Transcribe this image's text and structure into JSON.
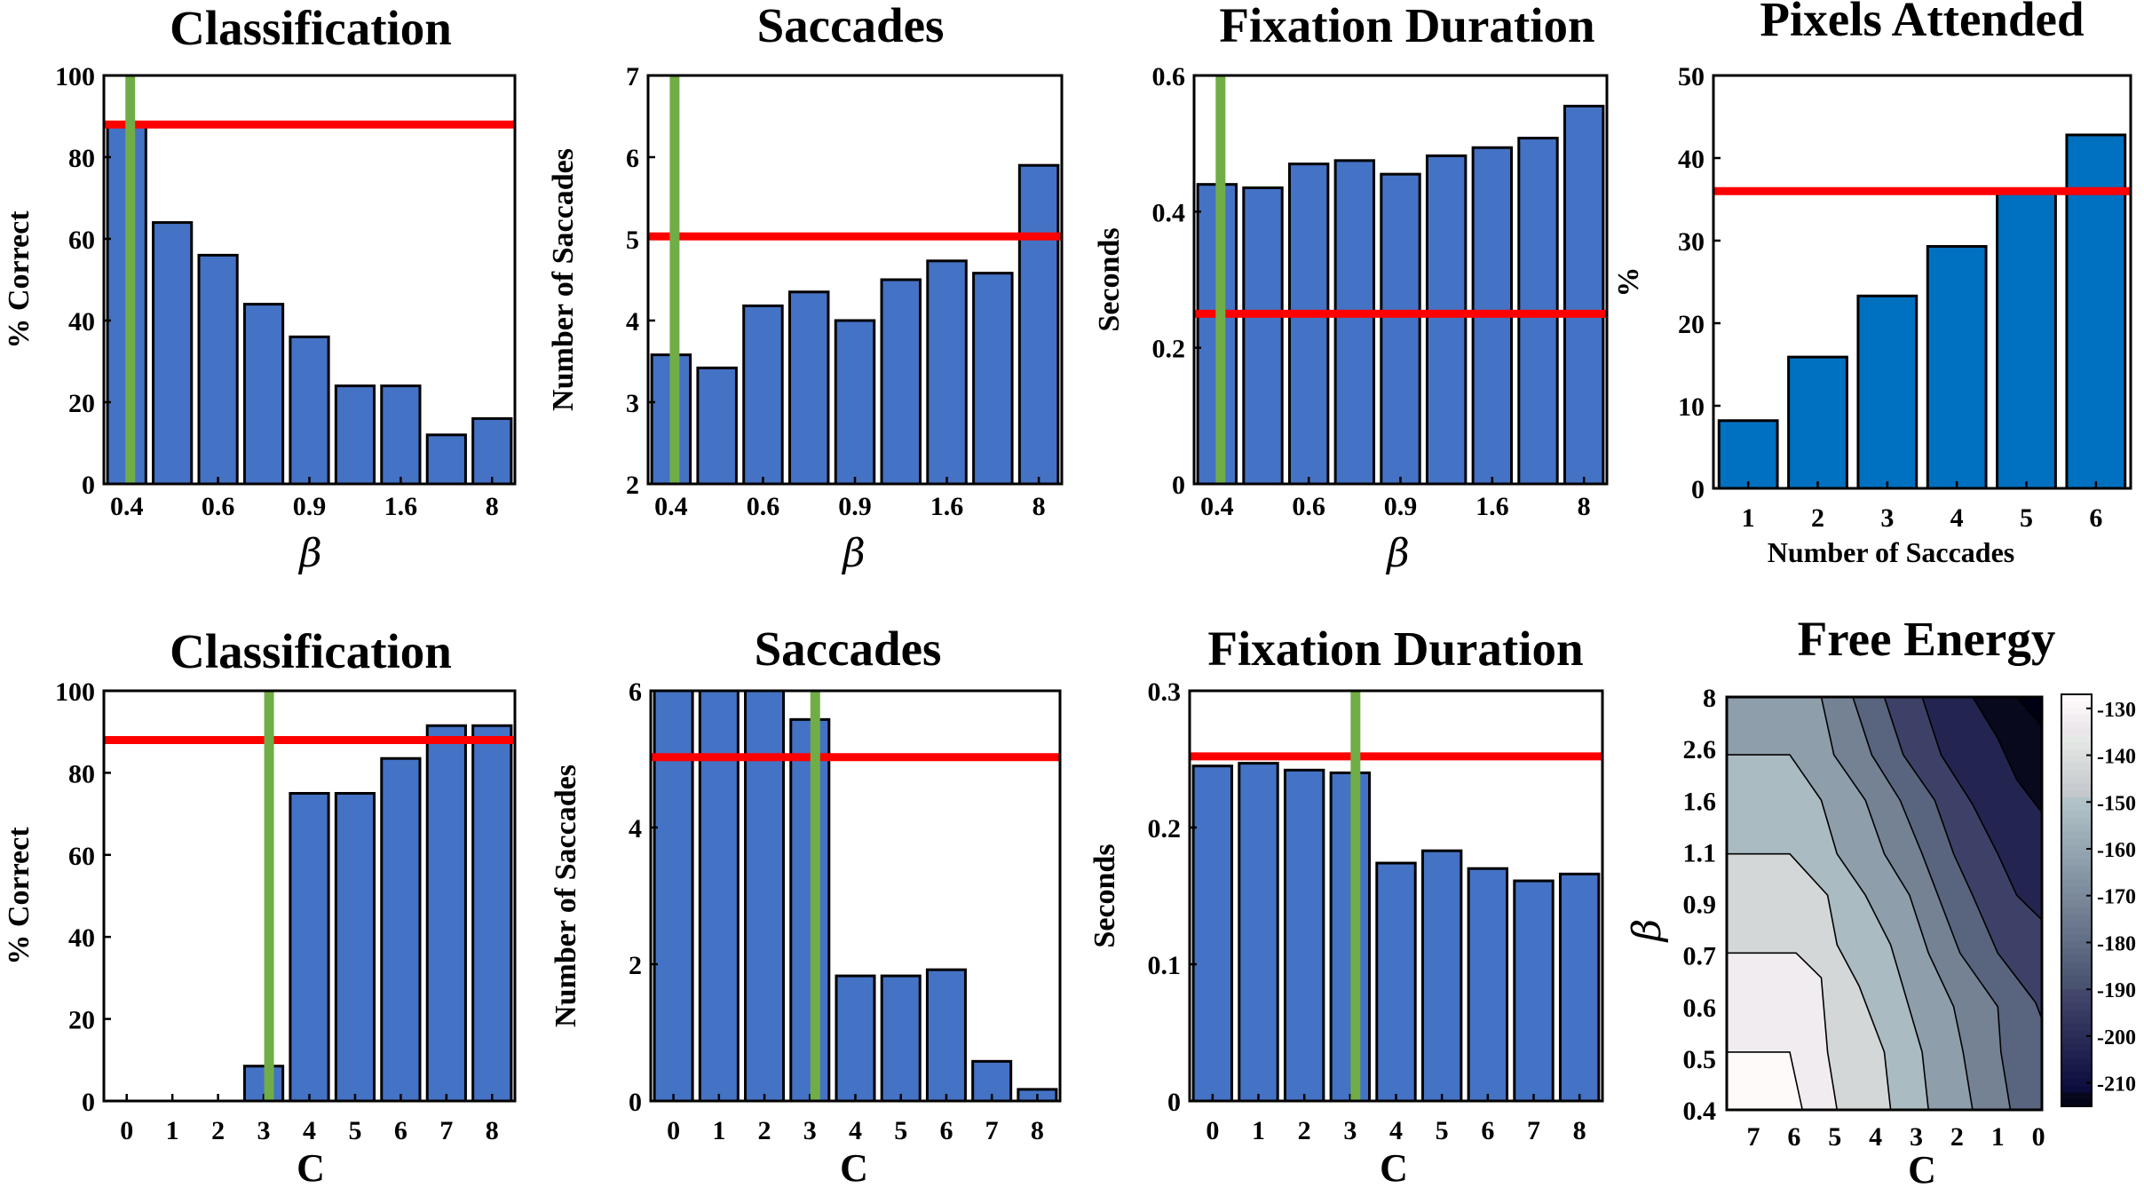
{
  "chart_data": [
    {
      "id": "top-classification",
      "type": "bar",
      "title": "Classification",
      "xlabel": "β",
      "ylabel": "% Correct",
      "ylim": [
        0,
        100
      ],
      "yticks": [
        0,
        20,
        40,
        60,
        80,
        100
      ],
      "xtick_labels": [
        "0.4",
        "0.6",
        "0.9",
        "1.6",
        "8"
      ],
      "values": [
        88,
        64,
        56,
        44,
        36,
        24,
        24,
        12,
        16
      ],
      "bar_color": "#4472c4",
      "reference_line": 88,
      "marker_index": 0
    },
    {
      "id": "top-saccades",
      "type": "bar",
      "title": "Saccades",
      "xlabel": "β",
      "ylabel": "Number of Saccades",
      "ylim": [
        2,
        7
      ],
      "yticks": [
        2,
        3,
        4,
        5,
        6,
        7
      ],
      "xtick_labels": [
        "0.4",
        "0.6",
        "0.9",
        "1.6",
        "8"
      ],
      "values": [
        3.58,
        3.42,
        4.18,
        4.35,
        4.0,
        4.5,
        4.73,
        4.58,
        5.9
      ],
      "bar_color": "#4472c4",
      "reference_line": 5.03,
      "marker_index": 0
    },
    {
      "id": "top-fixation",
      "type": "bar",
      "title": "Fixation Duration",
      "xlabel": "β",
      "ylabel": "Seconds",
      "ylim": [
        0,
        0.6
      ],
      "yticks": [
        0,
        0.2,
        0.4,
        0.6
      ],
      "ytick_labels": [
        "0",
        "0.2",
        "0.4",
        "0.6"
      ],
      "xtick_labels": [
        "0.4",
        "0.6",
        "0.9",
        "1.6",
        "8"
      ],
      "values": [
        0.44,
        0.435,
        0.47,
        0.475,
        0.455,
        0.482,
        0.494,
        0.508,
        0.555
      ],
      "bar_color": "#4472c4",
      "reference_line": 0.25,
      "marker_index": 0
    },
    {
      "id": "top-pixels",
      "type": "bar",
      "title": "Pixels Attended",
      "xlabel": "Number of Saccades",
      "ylabel": "%",
      "ylim": [
        0,
        50
      ],
      "yticks": [
        0,
        10,
        20,
        30,
        40,
        50
      ],
      "categories": [
        "1",
        "2",
        "3",
        "4",
        "5",
        "6"
      ],
      "values": [
        8.2,
        15.9,
        23.3,
        29.3,
        36.0,
        42.8
      ],
      "bar_color": "#0070c0",
      "reference_line": 36.0
    },
    {
      "id": "bottom-classification",
      "type": "bar",
      "title": "Classification",
      "xlabel": "C",
      "ylabel": "% Correct",
      "ylim": [
        0,
        100
      ],
      "yticks": [
        0,
        20,
        40,
        60,
        80,
        100
      ],
      "categories": [
        "0",
        "1",
        "2",
        "3",
        "4",
        "5",
        "6",
        "7",
        "8"
      ],
      "values": [
        0,
        0,
        0,
        8.5,
        75,
        75,
        83.5,
        91.5,
        91.5
      ],
      "bar_color": "#4472c4",
      "reference_line": 88,
      "marker_index": 3
    },
    {
      "id": "bottom-saccades",
      "type": "bar",
      "title": "Saccades",
      "xlabel": "C",
      "ylabel": "Number of Saccades",
      "ylim": [
        0,
        6
      ],
      "yticks": [
        0,
        2,
        4,
        6
      ],
      "categories": [
        "0",
        "1",
        "2",
        "3",
        "4",
        "5",
        "6",
        "7",
        "8"
      ],
      "values": [
        6,
        6,
        6,
        5.58,
        1.83,
        1.83,
        1.92,
        0.58,
        0.17
      ],
      "bar_color": "#4472c4",
      "reference_line": 5.03,
      "marker_index": 3
    },
    {
      "id": "bottom-fixation",
      "type": "bar",
      "title": "Fixation Duration",
      "xlabel": "C",
      "ylabel": "Seconds",
      "ylim": [
        0,
        0.3
      ],
      "yticks": [
        0,
        0.1,
        0.2,
        0.3
      ],
      "ytick_labels": [
        "0",
        "0.1",
        "0.2",
        "0.3"
      ],
      "categories": [
        "0",
        "1",
        "2",
        "3",
        "4",
        "5",
        "6",
        "7",
        "8"
      ],
      "values": [
        0.245,
        0.247,
        0.242,
        0.24,
        0.174,
        0.183,
        0.17,
        0.161,
        0.166
      ],
      "bar_color": "#4472c4",
      "reference_line": 0.252,
      "marker_index": 3
    },
    {
      "id": "bottom-free-energy",
      "type": "heatmap",
      "title": "Free Energy",
      "xlabel": "C",
      "ylabel": "β",
      "xtick_labels": [
        "7",
        "6",
        "5",
        "4",
        "3",
        "2",
        "1",
        "0"
      ],
      "ytick_labels": [
        "0.4",
        "0.5",
        "0.6",
        "0.7",
        "0.9",
        "1.1",
        "1.6",
        "2.6",
        "8"
      ],
      "colorbar_ticks": [
        "-130",
        "-140",
        "-150",
        "-160",
        "-170",
        "-180",
        "-190",
        "-200",
        "-210"
      ],
      "colorbar_range": [
        -215,
        -127
      ],
      "colormap": "bone",
      "levels": [
        {
          "value": -128
        },
        {
          "value": -138
        },
        {
          "value": -148
        },
        {
          "value": -158
        },
        {
          "value": -168
        },
        {
          "value": -178
        },
        {
          "value": -188
        },
        {
          "value": -198
        },
        {
          "value": -208
        }
      ]
    }
  ],
  "colors": {
    "reference_line": "#ff0000",
    "marker_line": "#70ad47"
  }
}
